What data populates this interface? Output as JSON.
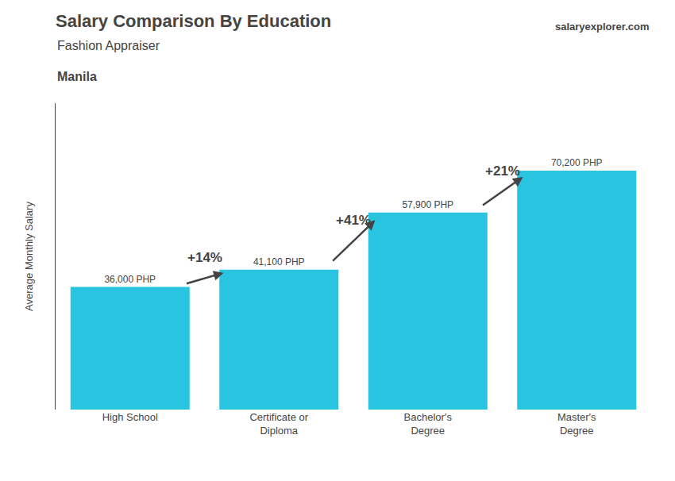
{
  "chart_data": {
    "type": "bar",
    "title": "Salary Comparison By Education",
    "subtitle": "Fashion Appraiser",
    "ylabel": "Average Monthly Salary",
    "categories": [
      "High School",
      "Certificate or\nDiploma",
      "Bachelor's\nDegree",
      "Master's\nDegree"
    ],
    "values": [
      36000,
      41100,
      57900,
      70200
    ],
    "value_labels": [
      "36,000 PHP",
      "41,100 PHP",
      "57,900 PHP",
      "70,200 PHP"
    ],
    "data_labels": true,
    "color": "#29c4e0",
    "ylim": [
      0,
      90000
    ],
    "yticks": [],
    "tick_labels": "x",
    "grid": false,
    "annotations": [
      {
        "text": "Manila"
      },
      {
        "text": "salaryexplorer.com"
      },
      {
        "text": "+14%",
        "from": "High School",
        "to": "Certificate or\nDiploma"
      },
      {
        "text": "+41%",
        "from": "Certificate or\nDiploma",
        "to": "Bachelor's\nDegree"
      },
      {
        "text": "+21%",
        "from": "Bachelor's\nDegree",
        "to": "Master's\nDegree"
      }
    ]
  }
}
